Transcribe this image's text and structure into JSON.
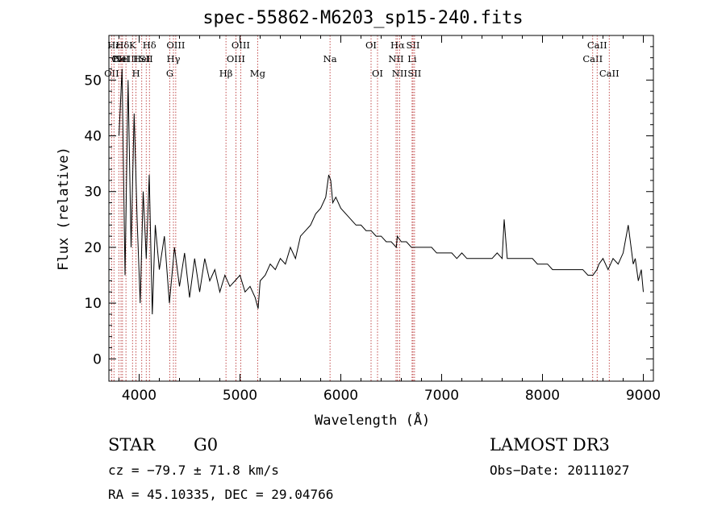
{
  "chart_data": {
    "type": "line",
    "title": "spec-55862-M6203_sp15-240.fits",
    "xlabel": "Wavelength (Å)",
    "ylabel": "Flux (relative)",
    "xlim": [
      3700,
      9100
    ],
    "ylim": [
      -4,
      58
    ],
    "xticks": [
      4000,
      5000,
      6000,
      7000,
      8000,
      9000
    ],
    "xtick_labels": [
      "4000",
      "5000",
      "6000",
      "7000",
      "8000",
      "9000"
    ],
    "yticks": [
      0,
      10,
      20,
      30,
      40,
      50
    ],
    "ytick_labels": [
      "0",
      "10",
      "20",
      "30",
      "40",
      "50"
    ],
    "series": [
      {
        "name": "spectrum",
        "x": [
          3800,
          3830,
          3860,
          3890,
          3920,
          3950,
          3980,
          4010,
          4040,
          4070,
          4100,
          4130,
          4160,
          4200,
          4250,
          4300,
          4350,
          4400,
          4450,
          4500,
          4550,
          4600,
          4650,
          4700,
          4750,
          4800,
          4850,
          4900,
          4950,
          5000,
          5050,
          5100,
          5150,
          5180,
          5200,
          5250,
          5300,
          5350,
          5400,
          5450,
          5500,
          5550,
          5600,
          5650,
          5700,
          5750,
          5800,
          5850,
          5880,
          5900,
          5920,
          5950,
          6000,
          6050,
          6100,
          6150,
          6200,
          6250,
          6300,
          6350,
          6400,
          6450,
          6500,
          6550,
          6560,
          6600,
          6650,
          6700,
          6750,
          6800,
          6850,
          6900,
          6950,
          7000,
          7050,
          7100,
          7150,
          7200,
          7250,
          7300,
          7350,
          7400,
          7450,
          7500,
          7550,
          7600,
          7620,
          7650,
          7700,
          7750,
          7800,
          7850,
          7900,
          7950,
          8000,
          8050,
          8100,
          8150,
          8200,
          8250,
          8300,
          8350,
          8400,
          8450,
          8500,
          8540,
          8560,
          8600,
          8650,
          8700,
          8750,
          8800,
          8850,
          8900,
          8920,
          8950,
          8980,
          9000
        ],
        "y": [
          40,
          52,
          15,
          50,
          20,
          44,
          25,
          10,
          30,
          18,
          33,
          8,
          24,
          16,
          22,
          10,
          20,
          13,
          19,
          11,
          18,
          12,
          18,
          14,
          16,
          12,
          15,
          13,
          14,
          15,
          12,
          13,
          11,
          9,
          14,
          15,
          17,
          16,
          18,
          17,
          20,
          18,
          22,
          23,
          24,
          26,
          27,
          29,
          33,
          32,
          28,
          29,
          27,
          26,
          25,
          24,
          24,
          23,
          23,
          22,
          22,
          21,
          21,
          20,
          22,
          21,
          21,
          20,
          20,
          20,
          20,
          20,
          19,
          19,
          19,
          19,
          18,
          19,
          18,
          18,
          18,
          18,
          18,
          18,
          19,
          18,
          25,
          18,
          18,
          18,
          18,
          18,
          18,
          17,
          17,
          17,
          16,
          16,
          16,
          16,
          16,
          16,
          16,
          15,
          15,
          16,
          17,
          18,
          16,
          18,
          17,
          19,
          24,
          17,
          18,
          14,
          16,
          12
        ]
      }
    ],
    "line_markers": [
      {
        "wl": 3727,
        "label": "OII",
        "row": 3
      },
      {
        "wl": 3750,
        "label": "Hε",
        "row": 1
      },
      {
        "wl": 3798,
        "label": "CII",
        "row": 2
      },
      {
        "wl": 3820,
        "label": "HeI",
        "row": 2
      },
      {
        "wl": 3835,
        "label": "Hδ",
        "row": 1
      },
      {
        "wl": 3869,
        "label": "NeIII",
        "row": 2
      },
      {
        "wl": 3934,
        "label": "K",
        "row": 1
      },
      {
        "wl": 3969,
        "label": "H",
        "row": 3
      },
      {
        "wl": 4026,
        "label": "HeI",
        "row": 2
      },
      {
        "wl": 4070,
        "label": "SII",
        "row": 2
      },
      {
        "wl": 4102,
        "label": "Hδ",
        "row": 1
      },
      {
        "wl": 4304,
        "label": "G",
        "row": 3
      },
      {
        "wl": 4340,
        "label": "Hγ",
        "row": 2
      },
      {
        "wl": 4363,
        "label": "OIII",
        "row": 1
      },
      {
        "wl": 4861,
        "label": "Hβ",
        "row": 3
      },
      {
        "wl": 4959,
        "label": "OIII",
        "row": 2
      },
      {
        "wl": 5007,
        "label": "OIII",
        "row": 1
      },
      {
        "wl": 5175,
        "label": "Mg",
        "row": 3
      },
      {
        "wl": 5893,
        "label": "Na",
        "row": 2
      },
      {
        "wl": 6300,
        "label": "OI",
        "row": 1
      },
      {
        "wl": 6364,
        "label": "OI",
        "row": 3
      },
      {
        "wl": 6548,
        "label": "NII",
        "row": 2
      },
      {
        "wl": 6563,
        "label": "Hα",
        "row": 1
      },
      {
        "wl": 6583,
        "label": "NII",
        "row": 3
      },
      {
        "wl": 6707,
        "label": "Li",
        "row": 2
      },
      {
        "wl": 6716,
        "label": "SII",
        "row": 1
      },
      {
        "wl": 6731,
        "label": "SII",
        "row": 3
      },
      {
        "wl": 8498,
        "label": "CaII",
        "row": 2
      },
      {
        "wl": 8542,
        "label": "CaII",
        "row": 1
      },
      {
        "wl": 8662,
        "label": "CaII",
        "row": 3
      }
    ]
  },
  "info": {
    "class_label": "STAR",
    "subclass": "G0",
    "survey": "LAMOST DR3",
    "redshift": "cz = −79.7 ± 71.8 km/s",
    "obs_date": "Obs−Date: 20111027",
    "coords": "RA =  45.10335, DEC =  29.04766"
  }
}
